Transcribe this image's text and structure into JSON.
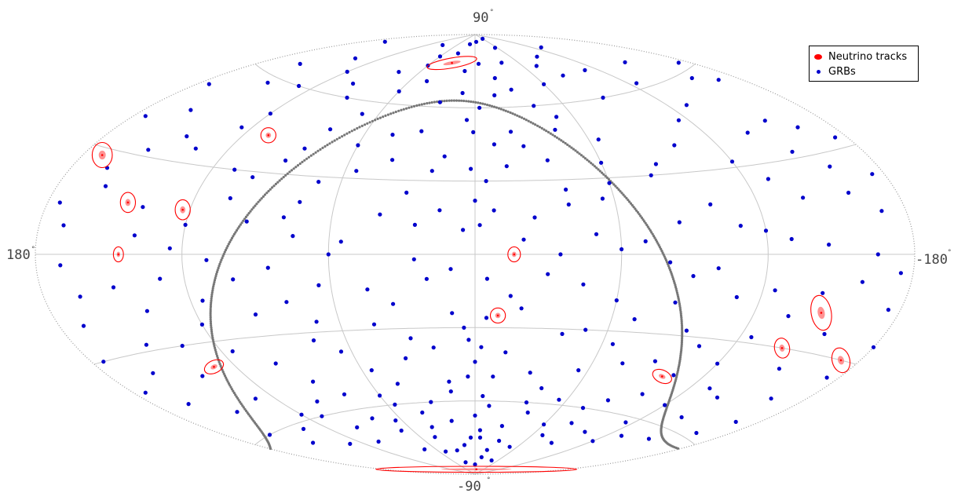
{
  "chart_data": {
    "type": "scatter",
    "projection": "Aitoff",
    "grid": true,
    "legend_placement": "top-right",
    "axes": {
      "lat_top_label": "90",
      "lat_bottom_label": "-90",
      "lon_left_label": "180",
      "lon_right_label": "-180",
      "degree_symbol": "°",
      "lon_range": [
        -180,
        180
      ],
      "lat_range": [
        -90,
        90
      ]
    },
    "colors": {
      "grb": "#0000cc",
      "track": "#ff0000",
      "track_core": "#ff8080",
      "galactic_plane": "#777777",
      "grid": "#c8c8c8",
      "boundary": "#999999"
    },
    "legend": [
      {
        "label": "Neutrino tracks",
        "color": "#ff0000"
      },
      {
        "label": "GRBs",
        "color": "#0000cc"
      }
    ],
    "neutrino_tracks": [
      {
        "lon": 33,
        "lat": 78,
        "err_lon": 10,
        "err_lat": 2,
        "angle": 10
      },
      {
        "lon": 108,
        "lat": 43,
        "err_lon": 3,
        "err_lat": 3,
        "angle": 0
      },
      {
        "lon": 172,
        "lat": 28,
        "err_lon": 4,
        "err_lat": 5,
        "angle": 0
      },
      {
        "lon": 147,
        "lat": 16,
        "err_lon": 3,
        "err_lat": 4,
        "angle": 0
      },
      {
        "lon": 123,
        "lat": 15,
        "err_lon": 3,
        "err_lat": 4,
        "angle": 0
      },
      {
        "lon": 146,
        "lat": 0,
        "err_lon": 2,
        "err_lat": 3,
        "angle": 0
      },
      {
        "lon": -16,
        "lat": 0,
        "err_lon": 2.5,
        "err_lat": 3,
        "angle": 0
      },
      {
        "lon": -10,
        "lat": -25,
        "err_lon": 3,
        "err_lat": 3,
        "angle": 0
      },
      {
        "lon": 130,
        "lat": -38,
        "err_lon": 4,
        "err_lat": 2.5,
        "angle": 25
      },
      {
        "lon": -100,
        "lat": -45,
        "err_lon": 4,
        "err_lat": 2.5,
        "angle": -25
      },
      {
        "lon": -148,
        "lat": -18,
        "err_lon": 4,
        "err_lat": 7,
        "angle": 10
      },
      {
        "lon": -142,
        "lat": -30,
        "err_lon": 3,
        "err_lat": 4,
        "angle": 10
      },
      {
        "lon": -172,
        "lat": -30,
        "err_lon": 3.5,
        "err_lat": 5,
        "angle": 15
      },
      {
        "lon": -10,
        "lat": -88,
        "err_lon": 40,
        "err_lat": 1.2,
        "angle": 0
      }
    ],
    "grbs": [
      [
        -6,
        87
      ],
      [
        35,
        82
      ],
      [
        -38,
        78
      ],
      [
        60,
        80
      ],
      [
        -75,
        75
      ],
      [
        12,
        75
      ],
      [
        -20,
        72
      ],
      [
        80,
        72
      ],
      [
        -110,
        70
      ],
      [
        140,
        72
      ],
      [
        -150,
        68
      ],
      [
        100,
        65
      ],
      [
        -60,
        68
      ],
      [
        25,
        62
      ],
      [
        -40,
        60
      ],
      [
        150,
        58
      ],
      [
        -170,
        55
      ],
      [
        -90,
        60
      ],
      [
        70,
        55
      ],
      [
        5,
        55
      ],
      [
        -130,
        52
      ],
      [
        120,
        50
      ],
      [
        -20,
        50
      ],
      [
        45,
        48
      ],
      [
        -65,
        45
      ],
      [
        160,
        45
      ],
      [
        -155,
        42
      ],
      [
        85,
        40
      ],
      [
        -100,
        40
      ],
      [
        15,
        40
      ],
      [
        -35,
        38
      ],
      [
        135,
        35
      ],
      [
        -175,
        33
      ],
      [
        55,
        33
      ],
      [
        -80,
        30
      ],
      [
        110,
        30
      ],
      [
        -5,
        30
      ],
      [
        165,
        25
      ],
      [
        -130,
        25
      ],
      [
        30,
        25
      ],
      [
        -55,
        22
      ],
      [
        75,
        20
      ],
      [
        -160,
        18
      ],
      [
        140,
        15
      ],
      [
        -25,
        15
      ],
      [
        95,
        12
      ],
      [
        -110,
        10
      ],
      [
        5,
        10
      ],
      [
        170,
        8
      ],
      [
        -70,
        5
      ],
      [
        55,
        5
      ],
      [
        -145,
        3
      ],
      [
        125,
        2
      ],
      [
        -35,
        0
      ],
      [
        25,
        -2
      ],
      [
        -175,
        -5
      ],
      [
        85,
        -5
      ],
      [
        -90,
        -8
      ],
      [
        150,
        -10
      ],
      [
        -5,
        -10
      ],
      [
        -125,
        -12
      ],
      [
        45,
        -14
      ],
      [
        115,
        -16
      ],
      [
        -60,
        -18
      ],
      [
        170,
        -20
      ],
      [
        -20,
        -22
      ],
      [
        10,
        -24
      ],
      [
        -155,
        -24
      ],
      [
        70,
        -26
      ],
      [
        -95,
        -28
      ],
      [
        135,
        -30
      ],
      [
        -40,
        -32
      ],
      [
        30,
        -34
      ],
      [
        160,
        -36
      ],
      [
        -120,
        -38
      ],
      [
        100,
        -40
      ],
      [
        -75,
        -42
      ],
      [
        0,
        -44
      ],
      [
        -165,
        -44
      ],
      [
        55,
        -46
      ],
      [
        -30,
        -48
      ],
      [
        130,
        -50
      ],
      [
        -100,
        -52
      ],
      [
        80,
        -54
      ],
      [
        -140,
        -56
      ],
      [
        15,
        -56
      ],
      [
        -55,
        -58
      ],
      [
        110,
        -60
      ],
      [
        -10,
        -62
      ],
      [
        40,
        -64
      ],
      [
        -80,
        -66
      ],
      [
        150,
        -66
      ],
      [
        -25,
        -70
      ],
      [
        70,
        -70
      ],
      [
        -120,
        -70
      ],
      [
        5,
        -75
      ],
      [
        -50,
        -78
      ],
      [
        30,
        -80
      ],
      [
        -15,
        -83
      ],
      [
        60,
        76
      ],
      [
        -95,
        78
      ],
      [
        120,
        68
      ],
      [
        -15,
        65
      ],
      [
        -175,
        62
      ],
      [
        90,
        60
      ],
      [
        -50,
        55
      ],
      [
        175,
        52
      ],
      [
        -10,
        45
      ],
      [
        60,
        43
      ],
      [
        -140,
        40
      ],
      [
        145,
        38
      ],
      [
        -60,
        36
      ],
      [
        20,
        34
      ],
      [
        -150,
        32
      ],
      [
        100,
        28
      ],
      [
        -40,
        26
      ],
      [
        0,
        22
      ],
      [
        160,
        20
      ],
      [
        -100,
        18
      ],
      [
        40,
        16
      ],
      [
        -170,
        12
      ],
      [
        120,
        10
      ],
      [
        -50,
        8
      ],
      [
        75,
        7
      ],
      [
        -130,
        5
      ],
      [
        170,
        -3
      ],
      [
        -80,
        -3
      ],
      [
        10,
        -6
      ],
      [
        -160,
        -8
      ],
      [
        100,
        -9
      ],
      [
        -45,
        -12
      ],
      [
        65,
        -12
      ],
      [
        -110,
        -15
      ],
      [
        140,
        -18
      ],
      [
        -15,
        -17
      ],
      [
        -175,
        -15
      ],
      [
        35,
        -20
      ],
      [
        -70,
        -25
      ],
      [
        95,
        -22
      ],
      [
        -135,
        -20
      ],
      [
        150,
        -28
      ],
      [
        -50,
        -30
      ],
      [
        5,
        -30
      ],
      [
        -105,
        -33
      ],
      [
        115,
        -34
      ],
      [
        65,
        -38
      ],
      [
        -150,
        -36
      ],
      [
        -15,
        -40
      ],
      [
        175,
        -40
      ],
      [
        -90,
        -40
      ],
      [
        35,
        -42
      ],
      [
        -130,
        -46
      ],
      [
        90,
        -48
      ],
      [
        -55,
        -46
      ],
      [
        150,
        -52
      ],
      [
        -170,
        -52
      ],
      [
        15,
        -52
      ],
      [
        -85,
        -56
      ],
      [
        120,
        -58
      ],
      [
        -35,
        -60
      ],
      [
        55,
        -60
      ],
      [
        -115,
        -62
      ],
      [
        80,
        -64
      ],
      [
        -60,
        -68
      ],
      [
        20,
        -68
      ],
      [
        -150,
        -64
      ],
      [
        130,
        -70
      ],
      [
        -5,
        -72
      ],
      [
        45,
        -74
      ],
      [
        -90,
        -74
      ],
      [
        75,
        -78
      ],
      [
        -30,
        -76
      ],
      [
        0,
        -86
      ],
      [
        20,
        86
      ],
      [
        -55,
        84
      ],
      [
        95,
        84
      ],
      [
        -130,
        80
      ],
      [
        170,
        78
      ],
      [
        -5,
        78
      ],
      [
        45,
        70
      ],
      [
        -85,
        70
      ],
      [
        160,
        65
      ],
      [
        -125,
        62
      ],
      [
        10,
        66
      ],
      [
        60,
        65
      ],
      [
        -30,
        67
      ],
      [
        130,
        60
      ],
      [
        -160,
        58
      ],
      [
        80,
        48
      ],
      [
        -45,
        50
      ],
      [
        -115,
        48
      ],
      [
        30,
        50
      ],
      [
        175,
        40
      ],
      [
        -25,
        44
      ],
      [
        90,
        35
      ],
      [
        -165,
        38
      ],
      [
        -85,
        34
      ],
      [
        125,
        44
      ],
      [
        40,
        38
      ],
      [
        -120,
        32
      ],
      [
        70,
        28
      ],
      [
        -15,
        36
      ],
      [
        155,
        32
      ],
      [
        -60,
        28
      ],
      [
        -175,
        22
      ],
      [
        15,
        18
      ],
      [
        105,
        20
      ],
      [
        -140,
        18
      ],
      [
        -40,
        20
      ],
      [
        80,
        14
      ],
      [
        -120,
        8
      ],
      [
        25,
        12
      ],
      [
        -160,
        26
      ],
      [
        175,
        14
      ],
      [
        -85,
        12
      ],
      [
        140,
        6
      ],
      [
        -20,
        6
      ],
      [
        60,
        0
      ],
      [
        -165,
        0
      ],
      [
        110,
        -2
      ],
      [
        -60,
        2
      ],
      [
        -100,
        -5
      ],
      [
        20,
        -10
      ],
      [
        130,
        -8
      ],
      [
        -180,
        -25
      ],
      [
        80,
        -18
      ],
      [
        -30,
        -8
      ],
      [
        -145,
        -12
      ],
      [
        165,
        -12
      ],
      [
        45,
        -28
      ],
      [
        -85,
        -18
      ],
      [
        120,
        -24
      ],
      [
        -125,
        -28
      ],
      [
        -5,
        -26
      ],
      [
        175,
        -30
      ],
      [
        75,
        -33
      ],
      [
        -65,
        -35
      ],
      [
        20,
        -38
      ],
      [
        140,
        -40
      ],
      [
        -105,
        -44
      ],
      [
        -175,
        -35
      ],
      [
        45,
        -52
      ],
      [
        100,
        -55
      ],
      [
        -140,
        -48
      ],
      [
        -40,
        -54
      ],
      [
        165,
        -46
      ],
      [
        -10,
        -50
      ],
      [
        -120,
        -54
      ],
      [
        60,
        -56
      ],
      [
        135,
        -62
      ],
      [
        -75,
        -60
      ],
      [
        -5,
        -58
      ],
      [
        -165,
        -58
      ],
      [
        30,
        -60
      ],
      [
        100,
        -66
      ],
      [
        -40,
        -64
      ],
      [
        65,
        -66
      ],
      [
        -100,
        -68
      ],
      [
        0,
        -66
      ],
      [
        160,
        -60
      ],
      [
        -130,
        -66
      ],
      [
        40,
        -70
      ],
      [
        -70,
        -72
      ],
      [
        105,
        -72
      ],
      [
        15,
        -78
      ],
      [
        -20,
        -80
      ],
      [
        50,
        -80
      ],
      [
        -45,
        -84
      ],
      [
        30,
        -85
      ],
      [
        -60,
        88
      ],
      [
        -3,
        60
      ],
      [
        2,
        35
      ],
      [
        -8,
        18
      ],
      [
        -3,
        -38
      ],
      [
        4,
        -50
      ],
      [
        -6,
        -75
      ],
      [
        -2,
        12
      ],
      [
        3,
        -35
      ],
      [
        1,
        50
      ]
    ]
  }
}
